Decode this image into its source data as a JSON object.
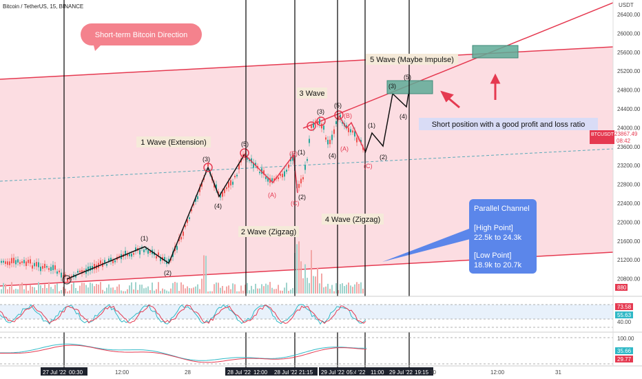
{
  "header": {
    "symbol": "Bitcoin / TetherUS, 15, BINANCE"
  },
  "currency": "USDT",
  "price_axis_labels": [
    "26400.00",
    "26000.00",
    "25600.00",
    "25200.00",
    "24800.00",
    "24400.00",
    "24000.00",
    "23600.00",
    "23200.00",
    "22800.00",
    "22400.00",
    "22000.00",
    "21600.00",
    "21200.00",
    "20800.00"
  ],
  "ticker": {
    "name": "BTCUSDT",
    "price": "23867.49",
    "countdown": "08:42"
  },
  "volume_badge": "880",
  "osc1": {
    "top": "73.58",
    "bottom": "55.63",
    "mid_label": "40.00"
  },
  "osc2": {
    "top_label": "100.00",
    "v1": "35.66",
    "v2": "29.77"
  },
  "time_labels": [
    "27 Jul '22",
    "00:30",
    "12:00",
    "28",
    "28 Jul '22",
    "12:00",
    "28 Jul '22",
    "21:15",
    "29 Jul '22",
    "05:45",
    "'22",
    "11:00",
    "29 Jul '22",
    "19:15",
    "30",
    "12:00",
    "31"
  ],
  "title_bubble": "Short-term Bitcoin Direction",
  "waves": {
    "w1": "1 Wave (Extension)",
    "w2": "2 Wave (Zigzag)",
    "w3": "3 Wave",
    "w4": "4 Wave (Zigzag)",
    "w5": "5 Wave (Maybe Impulse)"
  },
  "short_note": "Short position with a good profit and loss ratio",
  "channel_box": {
    "title": "Parallel Channel",
    "high_title": "[High Point]",
    "high_range": "22.5k to 24.3k",
    "low_title": "[Low Point]",
    "low_range": "18.9k to 20.7k"
  },
  "wave_marks": [
    "(1)",
    "(2)",
    "(3)",
    "(4)",
    "(5)",
    "(A)",
    "(B)",
    "(C)",
    "(1)",
    "(2)",
    "(3)",
    "(4)",
    "(5)",
    "(A)",
    "(B)",
    "(C)",
    "(1)",
    "(2)",
    "(3)",
    "(4)",
    "(5)"
  ],
  "colors": {
    "channel_fill": "#fcdde2",
    "channel_line": "#e53950",
    "label_box": "#f5ead9",
    "teal_box": "#5eaa97",
    "blue_box": "#5b86ea",
    "red_bubble": "#f4828d"
  }
}
